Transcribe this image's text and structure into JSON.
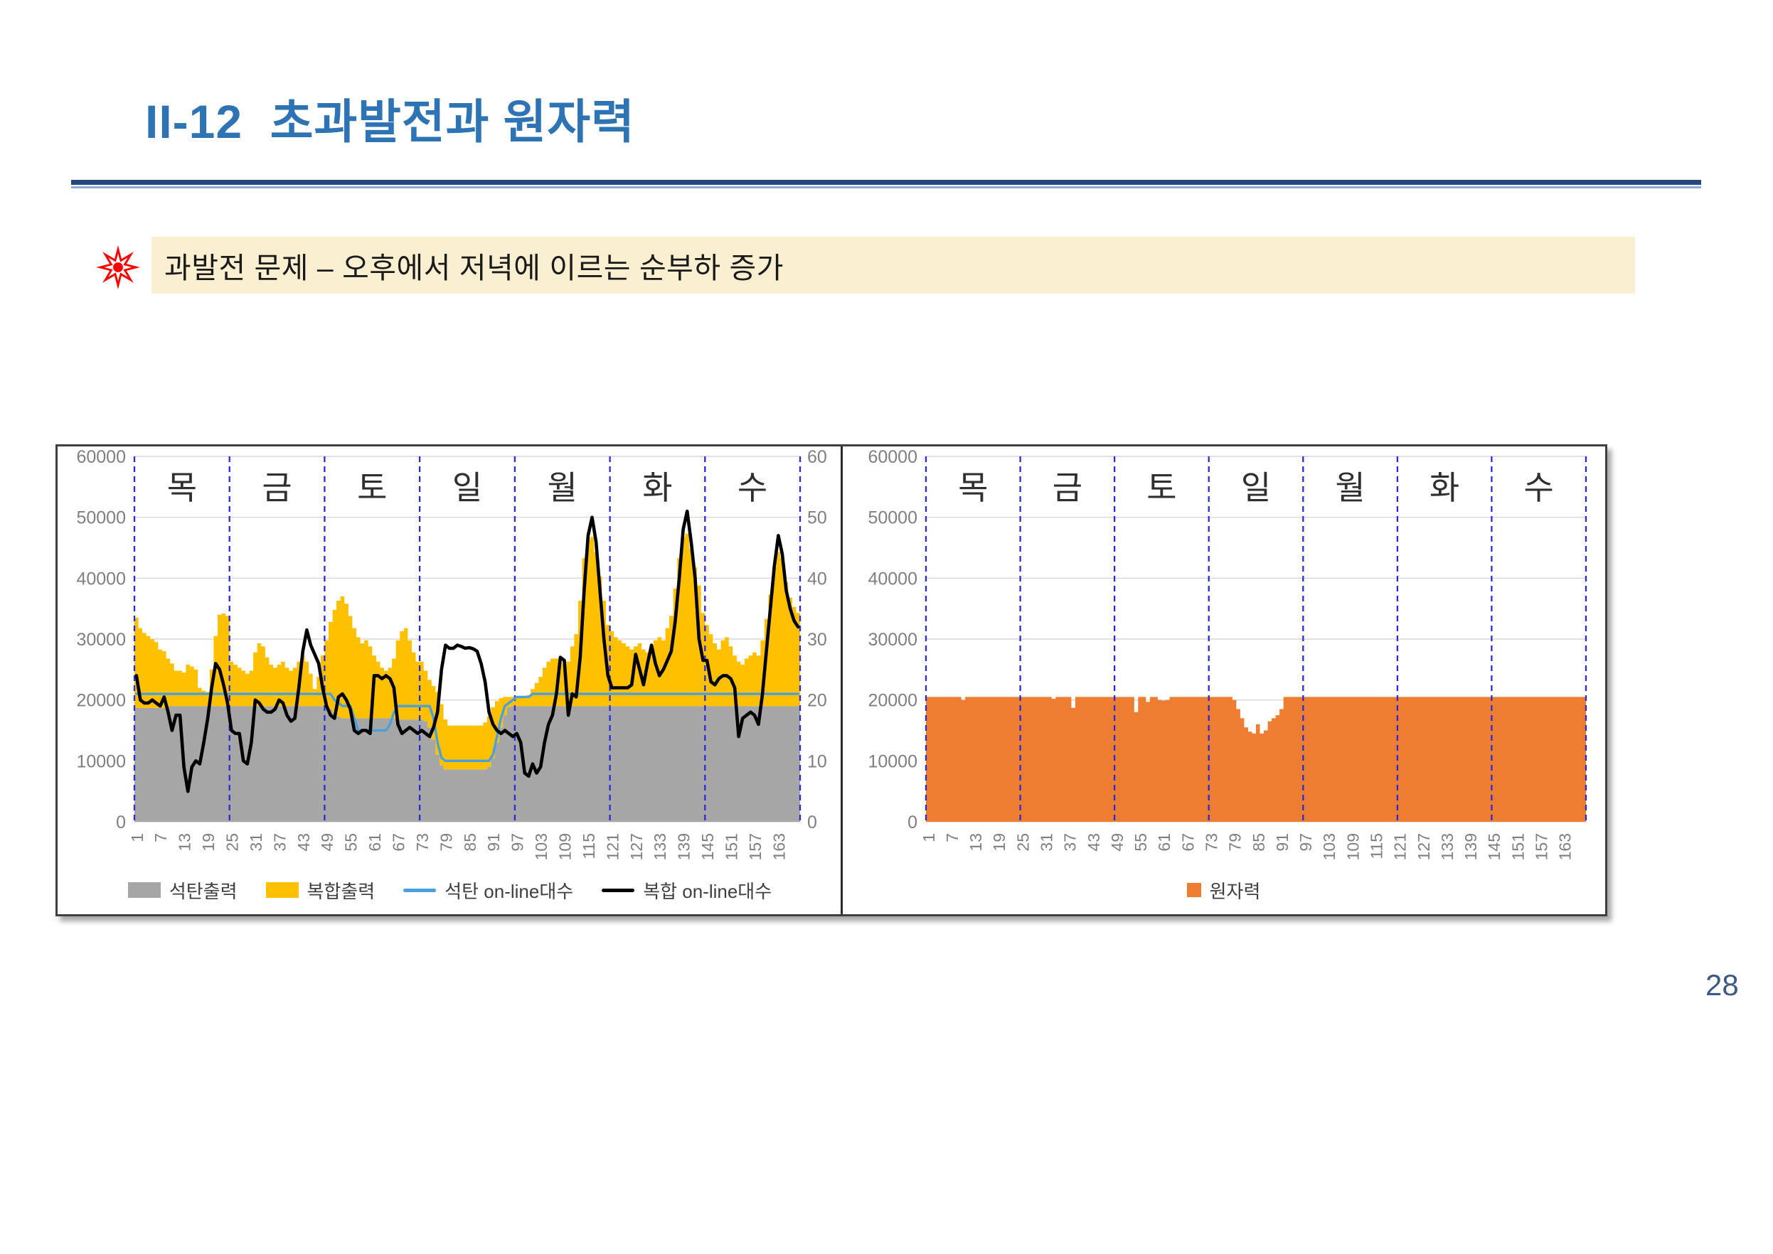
{
  "page": {
    "number": "28"
  },
  "header": {
    "title": "II-12  초과발전과 원자력",
    "title_color": "#2E74B5",
    "rule_dark": "#24477E",
    "rule_light": "#8FA9D9"
  },
  "callout": {
    "icon": "starburst-icon",
    "icon_color": "#FF0000",
    "background": "#FBEFD1",
    "text": "과발전 문제 – 오후에서 저녁에 이르는 순부하 증가"
  },
  "chart_data": [
    {
      "id": "generation-week-chart",
      "type": "area",
      "day_labels": [
        "목",
        "금",
        "토",
        "일",
        "월",
        "화",
        "수"
      ],
      "hours": 168,
      "hours_per_day": 24,
      "x_ticks": [
        1,
        7,
        13,
        19,
        25,
        31,
        37,
        43,
        49,
        55,
        61,
        67,
        73,
        79,
        85,
        91,
        97,
        103,
        109,
        115,
        121,
        127,
        133,
        139,
        145,
        151,
        157,
        163
      ],
      "y_left": {
        "min": 0,
        "max": 60000,
        "step": 10000
      },
      "y_right": {
        "min": 0,
        "max": 60,
        "step": 10
      },
      "grid_color": "#D9D9D9",
      "divider_color": "#2B2BD5",
      "axis_text_color": "#7F7F7F",
      "day_label_color": "#2F2F2F",
      "legend": [
        {
          "label": "석탄출력",
          "swatch": "area",
          "color": "#A6A6A6"
        },
        {
          "label": "복합출력",
          "swatch": "area",
          "color": "#FFC000"
        },
        {
          "label": "석탄 on-line대수",
          "swatch": "line",
          "color": "#4BA0DB"
        },
        {
          "label": "복합 on-line대수",
          "swatch": "line",
          "color": "#000000"
        }
      ],
      "series": {
        "coal_output": {
          "name": "석탄출력",
          "axis": "left",
          "style": "area",
          "color": "#A6A6A6",
          "values": [
            18700,
            18700,
            18700,
            18700,
            18700,
            18700,
            18700,
            18700,
            19000,
            19000,
            19000,
            19000,
            19000,
            19000,
            19000,
            19000,
            19000,
            19000,
            19000,
            19000,
            19000,
            19000,
            19000,
            19000,
            19000,
            19000,
            19000,
            19000,
            19000,
            19000,
            19000,
            19000,
            19000,
            19000,
            19000,
            19000,
            19000,
            19000,
            19000,
            19000,
            19000,
            19000,
            19000,
            19000,
            19000,
            19000,
            19000,
            19000,
            19000,
            18500,
            17800,
            17300,
            17000,
            17000,
            17000,
            17000,
            17000,
            17000,
            17000,
            17000,
            17000,
            17000,
            17000,
            17000,
            17000,
            17000,
            16800,
            16800,
            16800,
            16800,
            16800,
            16800,
            16800,
            16500,
            15500,
            13500,
            11000,
            9300,
            8600,
            8600,
            8600,
            8600,
            8600,
            8600,
            8600,
            8600,
            8600,
            8600,
            8600,
            9000,
            10500,
            13000,
            15500,
            17500,
            18800,
            19000,
            19000,
            19000,
            19000,
            19000,
            19000,
            19000,
            19000,
            19000,
            19000,
            19000,
            19000,
            19000,
            19000,
            19000,
            19000,
            19000,
            19000,
            19000,
            19000,
            19000,
            19000,
            19000,
            19000,
            19000,
            19000,
            19000,
            19000,
            19000,
            19000,
            19000,
            19000,
            19000,
            19000,
            19000,
            19000,
            19000,
            19000,
            19000,
            19000,
            19000,
            19000,
            19000,
            19000,
            19000,
            19000,
            19000,
            19000,
            19000,
            19000,
            19000,
            19000,
            19000,
            19000,
            19000,
            19000,
            19000,
            19000,
            19000,
            19000,
            19000,
            19000,
            19000,
            19000,
            19000,
            19000,
            19000,
            19000,
            19000,
            19000,
            19000,
            19000,
            19000
          ]
        },
        "combined_total": {
          "name": "복합출력",
          "axis": "left",
          "style": "area-stacked-top",
          "base": "coal_output",
          "color": "#FFC000",
          "values": [
            33500,
            31800,
            31000,
            30500,
            30000,
            29500,
            28300,
            28000,
            26800,
            26000,
            24800,
            24800,
            24500,
            25800,
            25500,
            25000,
            22000,
            21500,
            21300,
            25000,
            30500,
            34000,
            34200,
            33800,
            26300,
            25800,
            25300,
            24800,
            24300,
            24800,
            27800,
            29300,
            28800,
            27000,
            25800,
            25300,
            25800,
            26300,
            25300,
            24800,
            25300,
            26300,
            27300,
            26300,
            24300,
            21800,
            23800,
            27300,
            29800,
            32800,
            34800,
            36300,
            37000,
            35800,
            33800,
            31800,
            30300,
            29300,
            29800,
            28800,
            27300,
            26300,
            25300,
            24800,
            25300,
            26800,
            29800,
            31300,
            31800,
            29800,
            27800,
            26300,
            26300,
            24800,
            23300,
            22300,
            21300,
            19300,
            16800,
            15800,
            15800,
            15800,
            15800,
            15800,
            15800,
            15800,
            15800,
            15800,
            16300,
            17300,
            18800,
            19800,
            20300,
            20500,
            20500,
            20500,
            20500,
            20500,
            20500,
            20800,
            21800,
            22800,
            23800,
            25300,
            26300,
            26800,
            26800,
            26300,
            25800,
            26300,
            28800,
            30800,
            36300,
            43300,
            46300,
            46800,
            44300,
            40300,
            36300,
            32300,
            31300,
            30300,
            29800,
            29300,
            28800,
            28300,
            28800,
            29300,
            28300,
            27800,
            28800,
            29800,
            30300,
            29800,
            31800,
            33800,
            38300,
            43300,
            46800,
            47300,
            44800,
            41800,
            38800,
            34300,
            32300,
            30800,
            29300,
            28300,
            29800,
            30300,
            28800,
            27300,
            26300,
            25800,
            26800,
            27300,
            27800,
            27300,
            29800,
            33300,
            37300,
            41800,
            44300,
            43300,
            39300,
            36800,
            35300,
            34300
          ]
        },
        "coal_online": {
          "name": "석탄 on-line대수",
          "axis": "right",
          "style": "line",
          "color": "#4BA0DB",
          "width": 3.4,
          "values": [
            21,
            21,
            21,
            21,
            21,
            21,
            21,
            21,
            21,
            21,
            21,
            21,
            21,
            21,
            21,
            21,
            21,
            21,
            21,
            21,
            21,
            21,
            21,
            21,
            21,
            21,
            21,
            21,
            21,
            21,
            21,
            21,
            21,
            21,
            21,
            21,
            21,
            21,
            21,
            21,
            21,
            21,
            21,
            21,
            21,
            21,
            21,
            21,
            21,
            21,
            20,
            19.5,
            19,
            19,
            19,
            17,
            15,
            15,
            15,
            15,
            15,
            15,
            15,
            15,
            16,
            18,
            19,
            19,
            19,
            19,
            19,
            19,
            19,
            19,
            19,
            17,
            13,
            10.5,
            10,
            10,
            10,
            10,
            10,
            10,
            10,
            10,
            10,
            10,
            10,
            10,
            11,
            14,
            17,
            19,
            19.5,
            20,
            20.5,
            20.5,
            20.5,
            20.5,
            21,
            21,
            21,
            21,
            21,
            21,
            21,
            21,
            21,
            21,
            21,
            21,
            21,
            21,
            21,
            21,
            21,
            21,
            21,
            21,
            21,
            21,
            21,
            21,
            21,
            21,
            21,
            21,
            21,
            21,
            21,
            21,
            21,
            21,
            21,
            21,
            21,
            21,
            21,
            21,
            21,
            21,
            21,
            21,
            21,
            21,
            21,
            21,
            21,
            21,
            21,
            21,
            21,
            21,
            21,
            21,
            21,
            21,
            21,
            21,
            21,
            21,
            21,
            21,
            21,
            21,
            21,
            21
          ]
        },
        "combined_online": {
          "name": "복합 on-line대수",
          "axis": "right",
          "style": "line",
          "color": "#000000",
          "width": 4.6,
          "values": [
            24,
            20,
            19.5,
            19.5,
            20,
            19.5,
            19,
            20.5,
            18,
            15,
            17.5,
            17.5,
            9,
            5,
            9,
            10,
            9.5,
            13,
            17,
            22,
            26,
            25,
            22.5,
            19.5,
            15,
            14.5,
            14.5,
            10,
            9.5,
            13,
            20,
            19.5,
            18.5,
            18,
            18,
            18.5,
            20,
            19.5,
            17.5,
            16.5,
            17,
            22,
            28,
            31.5,
            29,
            27.5,
            26,
            22,
            19,
            17.5,
            17,
            20.5,
            21,
            20,
            18.5,
            15,
            14.5,
            15,
            15,
            14.5,
            24,
            24,
            23.5,
            24,
            23.5,
            22,
            16,
            14.5,
            15,
            15.5,
            15,
            14.5,
            15,
            14.5,
            14,
            15.5,
            18,
            25,
            29,
            28.5,
            28.5,
            29,
            28.8,
            28.5,
            28.6,
            28.4,
            28,
            26,
            23,
            18,
            16,
            15,
            14.5,
            15,
            14.5,
            14,
            14.5,
            13,
            8,
            7.5,
            9.5,
            8,
            9,
            13,
            16,
            17.5,
            21,
            27,
            26.5,
            17.5,
            21,
            20.5,
            27,
            38,
            47,
            50,
            46,
            38,
            30,
            24,
            22,
            22,
            22,
            22,
            22,
            22.5,
            27.5,
            25,
            22.5,
            26,
            29,
            26,
            24,
            25,
            26.5,
            28,
            33,
            40,
            48,
            51,
            46,
            40,
            30,
            26.5,
            26.5,
            23,
            22.5,
            23.5,
            24,
            24,
            23.5,
            22,
            14,
            17,
            17.5,
            18,
            17.5,
            16,
            21,
            28,
            35,
            42,
            47,
            44,
            38,
            35,
            33,
            32
          ]
        }
      }
    },
    {
      "id": "nuclear-week-chart",
      "type": "area",
      "day_labels": [
        "목",
        "금",
        "토",
        "일",
        "월",
        "화",
        "수"
      ],
      "hours": 168,
      "hours_per_day": 24,
      "x_ticks": [
        1,
        7,
        13,
        19,
        25,
        31,
        37,
        43,
        49,
        55,
        61,
        67,
        73,
        79,
        85,
        91,
        97,
        103,
        109,
        115,
        121,
        127,
        133,
        139,
        145,
        151,
        157,
        163
      ],
      "y_left": {
        "min": 0,
        "max": 60000,
        "step": 10000
      },
      "y_right": null,
      "grid_color": "#D9D9D9",
      "divider_color": "#2B2BD5",
      "axis_text_color": "#7F7F7F",
      "day_label_color": "#2F2F2F",
      "legend": [
        {
          "label": "원자력",
          "swatch": "square",
          "color": "#ED7D31"
        }
      ],
      "series": {
        "nuclear": {
          "name": "원자력",
          "axis": "left",
          "style": "area",
          "color": "#ED7D31",
          "values": [
            20500,
            20500,
            20500,
            20500,
            20500,
            20500,
            20500,
            20500,
            20500,
            20000,
            20500,
            20500,
            20500,
            20500,
            20500,
            20500,
            20500,
            20500,
            20500,
            20500,
            20500,
            20500,
            20500,
            20500,
            20500,
            20500,
            20500,
            20500,
            20500,
            20500,
            20500,
            20500,
            20200,
            20500,
            20500,
            20500,
            20500,
            18700,
            20500,
            20500,
            20500,
            20500,
            20500,
            20500,
            20500,
            20500,
            20500,
            20500,
            20500,
            20500,
            20500,
            20500,
            20500,
            18000,
            20500,
            20500,
            19700,
            20500,
            20500,
            20000,
            19900,
            20000,
            20500,
            20500,
            20500,
            20500,
            20500,
            20500,
            20500,
            20500,
            20500,
            20500,
            20500,
            20500,
            20500,
            20500,
            20500,
            20500,
            20000,
            18500,
            17000,
            15500,
            14800,
            14500,
            16000,
            14500,
            15000,
            16500,
            17000,
            17500,
            18500,
            20500,
            20500,
            20500,
            20500,
            20500,
            20500,
            20500,
            20500,
            20500,
            20500,
            20500,
            20500,
            20500,
            20500,
            20500,
            20500,
            20500,
            20500,
            20500,
            20500,
            20500,
            20500,
            20500,
            20500,
            20500,
            20500,
            20500,
            20500,
            20500,
            20500,
            20500,
            20500,
            20500,
            20500,
            20500,
            20500,
            20500,
            20500,
            20500,
            20500,
            20500,
            20500,
            20500,
            20500,
            20500,
            20500,
            20500,
            20500,
            20500,
            20500,
            20500,
            20500,
            20500,
            20500,
            20500,
            20500,
            20500,
            20500,
            20500,
            20500,
            20500,
            20500,
            20500,
            20500,
            20500,
            20500,
            20500,
            20500,
            20500,
            20500,
            20500,
            20500,
            20500,
            20500,
            20500,
            20500,
            20500
          ]
        }
      }
    }
  ]
}
